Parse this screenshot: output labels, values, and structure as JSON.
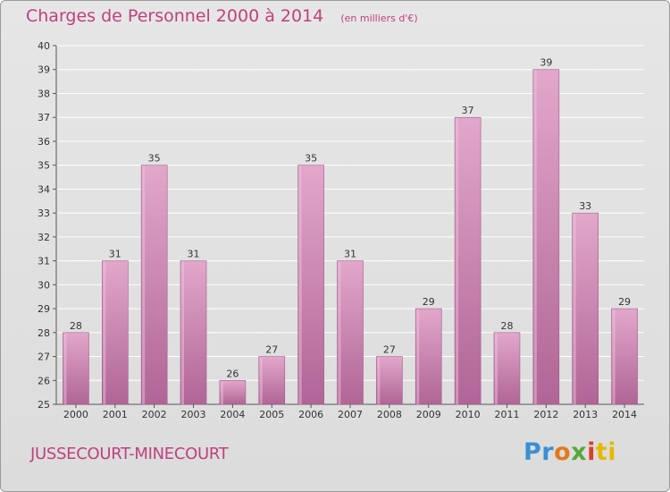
{
  "title": "Charges de Personnel 2000 à 2014",
  "subtitle": "(en milliers d'€)",
  "town": "JUSSECOURT-MINECOURT",
  "logo": {
    "part1": "Pr",
    "part2": "o",
    "part3": "x",
    "part4": "i",
    "part5": "ti"
  },
  "colors": {
    "bar": "#d98cb8",
    "bar_top": "#e2a7cb",
    "bar_bottom": "#b06596",
    "accent": "#c0407f",
    "axis": "#555555",
    "grid": "#ffffff"
  },
  "chart_data": {
    "type": "bar",
    "title": "Charges de Personnel 2000 à 2014",
    "categories": [
      "2000",
      "2001",
      "2002",
      "2003",
      "2004",
      "2005",
      "2006",
      "2007",
      "2008",
      "2009",
      "2010",
      "2011",
      "2012",
      "2013",
      "2014"
    ],
    "values": [
      28,
      31,
      35,
      31,
      26,
      27,
      35,
      31,
      27,
      29,
      37,
      28,
      39,
      33,
      29
    ],
    "ylim": [
      25,
      40
    ],
    "yticks": [
      25,
      26,
      27,
      28,
      29,
      30,
      31,
      32,
      33,
      34,
      35,
      36,
      37,
      38,
      39,
      40
    ],
    "grid": true,
    "data_labels": true
  }
}
